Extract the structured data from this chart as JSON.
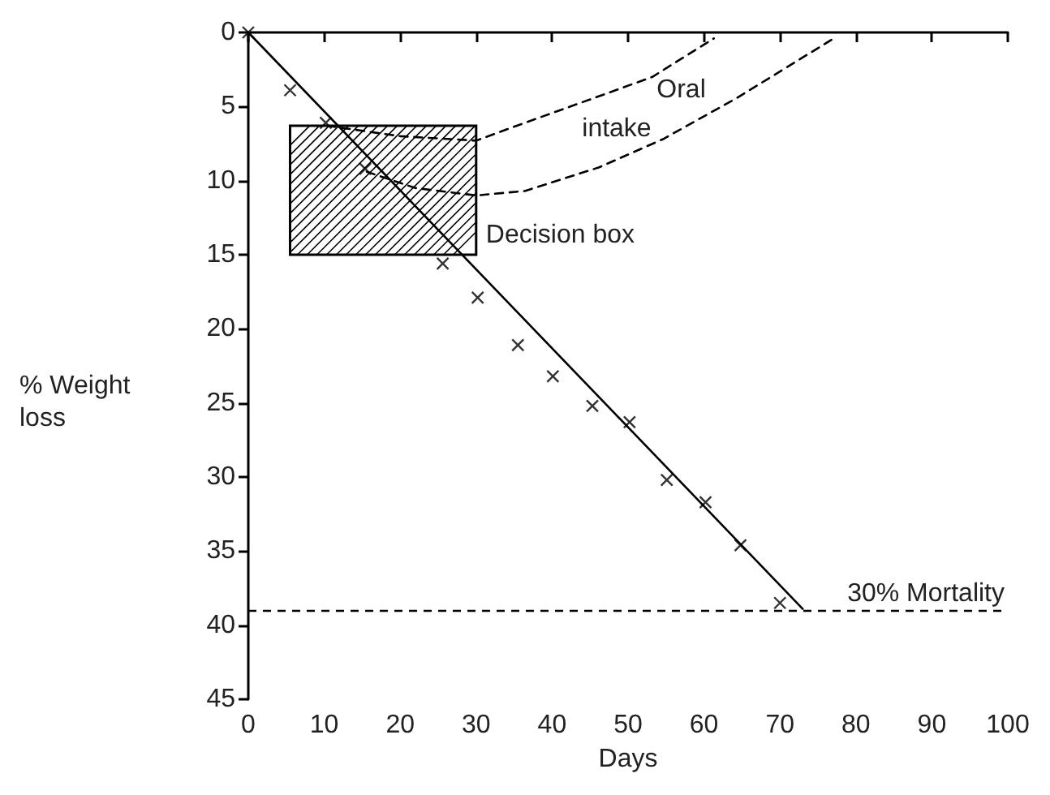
{
  "chart_data": {
    "type": "scatter",
    "xlabel": "Days",
    "ylabel": "% Weight loss",
    "xlim": [
      0,
      100
    ],
    "xticks": [
      0,
      10,
      20,
      30,
      40,
      50,
      60,
      70,
      80,
      90,
      100
    ],
    "ylim": [
      45,
      0
    ],
    "yticks": [
      0,
      5,
      10,
      15,
      20,
      25,
      30,
      35,
      40,
      45
    ],
    "grid": false,
    "series": [
      {
        "marker": "cross",
        "color": "#000000",
        "x": [
          0,
          5.5,
          10.2,
          15.4,
          25.6,
          30.2,
          35.5,
          40.1,
          45.3,
          50.2,
          55.1,
          60.2,
          64.8,
          70
        ],
        "values": [
          0,
          3.9,
          6.1,
          9.2,
          15.6,
          17.9,
          21.1,
          23.2,
          25.2,
          26.3,
          30.2,
          31.7,
          34.6,
          38.5
        ]
      },
      {
        "type": "line",
        "color": "#000000",
        "line_style": "solid",
        "x": [
          0,
          73
        ],
        "values": [
          0,
          38.9
        ]
      },
      {
        "type": "line",
        "color": "#000000",
        "line_style": "dashed",
        "x": [
          10.4,
          20,
          30,
          36.4,
          46.2,
          53.2,
          61.3
        ],
        "values": [
          6.3,
          7.0,
          7.3,
          6.1,
          4.3,
          3.0,
          0.4
        ]
      },
      {
        "type": "line",
        "color": "#000000",
        "line_style": "dashed",
        "x": [
          15.6,
          22,
          30,
          36.4,
          46.2,
          54.6,
          64.4,
          77.4
        ],
        "values": [
          9.4,
          10.5,
          11.0,
          10.7,
          9.1,
          7.2,
          4.4,
          0.3
        ]
      },
      {
        "type": "area",
        "color": "#000000",
        "x": [
          5.5,
          30,
          30,
          5.5,
          5.5
        ],
        "values": [
          6.3,
          6.3,
          15,
          15,
          6.3
        ]
      }
    ],
    "ref_lines": [
      {
        "axis": "y",
        "value": 39,
        "label": "30% Mortality",
        "color": "#000000",
        "line_style": "dashed"
      }
    ],
    "annotations": [
      {
        "text": "Oral",
        "x": 57,
        "y": 3.9
      },
      {
        "text": "intake",
        "x": 48.5,
        "y": 6.5
      },
      "Decision box"
    ]
  }
}
